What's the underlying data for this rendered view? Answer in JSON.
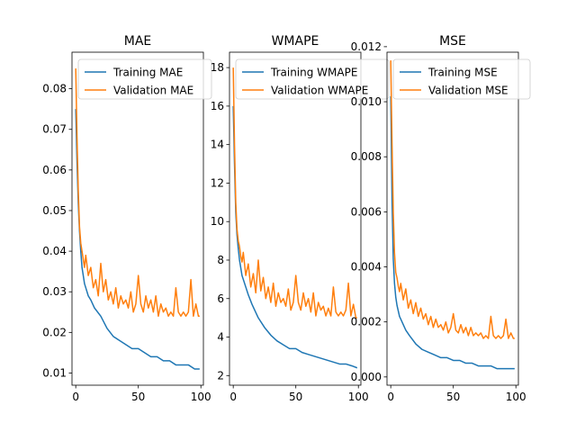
{
  "colors": {
    "training": "#1f77b4",
    "validation": "#ff7f0e"
  },
  "chart_data": [
    {
      "type": "line",
      "title": "MAE",
      "xlabel": "",
      "ylabel": "",
      "xlim": [
        -3,
        102
      ],
      "ylim": [
        0.007,
        0.089
      ],
      "xticks": [
        0,
        50,
        100
      ],
      "yticks": [
        0.01,
        0.02,
        0.03,
        0.04,
        0.05,
        0.06,
        0.07,
        0.08
      ],
      "ytick_labels": [
        "0.01",
        "0.02",
        "0.03",
        "0.04",
        "0.05",
        "0.06",
        "0.07",
        "0.08"
      ],
      "legend": "top-right",
      "grid": false,
      "series": [
        {
          "name": "Training MAE",
          "color": "#1f77b4",
          "x": [
            0,
            1,
            2,
            3,
            4,
            5,
            6,
            7,
            8,
            10,
            12,
            15,
            20,
            25,
            30,
            35,
            40,
            45,
            50,
            55,
            60,
            65,
            70,
            75,
            80,
            85,
            90,
            95,
            99
          ],
          "y": [
            0.075,
            0.062,
            0.052,
            0.045,
            0.04,
            0.036,
            0.034,
            0.032,
            0.031,
            0.029,
            0.028,
            0.026,
            0.024,
            0.021,
            0.019,
            0.018,
            0.017,
            0.016,
            0.016,
            0.015,
            0.014,
            0.014,
            0.013,
            0.013,
            0.012,
            0.012,
            0.012,
            0.011,
            0.011
          ]
        },
        {
          "name": "Validation MAE",
          "color": "#ff7f0e",
          "x": [
            0,
            1,
            2,
            3,
            4,
            5,
            6,
            7,
            8,
            10,
            12,
            14,
            16,
            18,
            20,
            22,
            24,
            26,
            28,
            30,
            32,
            34,
            36,
            38,
            40,
            42,
            44,
            46,
            48,
            50,
            52,
            54,
            56,
            58,
            60,
            62,
            64,
            66,
            68,
            70,
            72,
            74,
            76,
            78,
            80,
            82,
            84,
            86,
            88,
            90,
            92,
            94,
            96,
            98,
            99
          ],
          "y": [
            0.085,
            0.068,
            0.055,
            0.046,
            0.042,
            0.04,
            0.038,
            0.036,
            0.039,
            0.034,
            0.036,
            0.031,
            0.033,
            0.029,
            0.037,
            0.03,
            0.033,
            0.028,
            0.03,
            0.027,
            0.031,
            0.026,
            0.029,
            0.027,
            0.028,
            0.026,
            0.03,
            0.025,
            0.027,
            0.034,
            0.027,
            0.025,
            0.029,
            0.026,
            0.028,
            0.025,
            0.029,
            0.024,
            0.027,
            0.025,
            0.026,
            0.024,
            0.025,
            0.024,
            0.031,
            0.025,
            0.024,
            0.025,
            0.024,
            0.025,
            0.033,
            0.024,
            0.027,
            0.024,
            0.024
          ]
        }
      ]
    },
    {
      "type": "line",
      "title": "WMAPE",
      "xlabel": "",
      "ylabel": "",
      "xlim": [
        -3,
        102
      ],
      "ylim": [
        1.5,
        18.8
      ],
      "xticks": [
        0,
        50,
        100
      ],
      "yticks": [
        2,
        4,
        6,
        8,
        10,
        12,
        14,
        16,
        18
      ],
      "ytick_labels": [
        "2",
        "4",
        "6",
        "8",
        "10",
        "12",
        "14",
        "16",
        "18"
      ],
      "legend": "top-right",
      "grid": false,
      "series": [
        {
          "name": "Training WMAPE",
          "color": "#1f77b4",
          "x": [
            0,
            1,
            2,
            3,
            4,
            5,
            6,
            7,
            8,
            10,
            12,
            15,
            20,
            25,
            30,
            35,
            40,
            45,
            50,
            55,
            60,
            65,
            70,
            75,
            80,
            85,
            90,
            95,
            99
          ],
          "y": [
            16.0,
            13.0,
            10.5,
            9.3,
            8.6,
            8.0,
            7.6,
            7.2,
            7.0,
            6.6,
            6.2,
            5.7,
            5.0,
            4.5,
            4.1,
            3.8,
            3.6,
            3.4,
            3.4,
            3.2,
            3.1,
            3.0,
            2.9,
            2.8,
            2.7,
            2.6,
            2.6,
            2.5,
            2.4
          ]
        },
        {
          "name": "Validation WMAPE",
          "color": "#ff7f0e",
          "x": [
            0,
            1,
            2,
            3,
            4,
            5,
            6,
            7,
            8,
            10,
            12,
            14,
            16,
            18,
            20,
            22,
            24,
            26,
            28,
            30,
            32,
            34,
            36,
            38,
            40,
            42,
            44,
            46,
            48,
            50,
            52,
            54,
            56,
            58,
            60,
            62,
            64,
            66,
            68,
            70,
            72,
            74,
            76,
            78,
            80,
            82,
            84,
            86,
            88,
            90,
            92,
            94,
            96,
            98,
            99
          ],
          "y": [
            18.0,
            14.0,
            11.0,
            9.6,
            9.0,
            8.7,
            8.2,
            7.9,
            8.4,
            7.2,
            7.8,
            6.6,
            7.3,
            6.3,
            8.0,
            6.4,
            7.1,
            6.0,
            6.6,
            5.8,
            6.8,
            5.6,
            6.3,
            5.8,
            6.0,
            5.6,
            6.5,
            5.4,
            5.8,
            7.2,
            5.8,
            5.4,
            6.3,
            5.6,
            6.0,
            5.3,
            6.3,
            5.1,
            5.8,
            5.4,
            5.6,
            5.1,
            5.5,
            5.1,
            6.6,
            5.3,
            5.1,
            5.3,
            5.1,
            5.4,
            6.8,
            5.1,
            5.7,
            5.0,
            5.0
          ]
        }
      ]
    },
    {
      "type": "line",
      "title": "MSE",
      "xlabel": "",
      "ylabel": "",
      "xlim": [
        -3,
        102
      ],
      "ylim": [
        -0.0003,
        0.0118
      ],
      "xticks": [
        0,
        50,
        100
      ],
      "yticks": [
        0.0,
        0.002,
        0.004,
        0.006,
        0.008,
        0.01,
        0.012
      ],
      "ytick_labels": [
        "0.000",
        "0.002",
        "0.004",
        "0.006",
        "0.008",
        "0.010",
        "0.012"
      ],
      "legend": "top-right",
      "grid": false,
      "series": [
        {
          "name": "Training MSE",
          "color": "#1f77b4",
          "x": [
            0,
            1,
            2,
            3,
            4,
            5,
            6,
            7,
            8,
            10,
            12,
            15,
            20,
            25,
            30,
            35,
            40,
            45,
            50,
            55,
            60,
            65,
            70,
            75,
            80,
            85,
            90,
            95,
            99
          ],
          "y": [
            0.0102,
            0.0065,
            0.0043,
            0.0034,
            0.0029,
            0.0026,
            0.0024,
            0.0022,
            0.0021,
            0.0019,
            0.0017,
            0.0015,
            0.0012,
            0.001,
            0.0009,
            0.0008,
            0.0007,
            0.0007,
            0.0006,
            0.0006,
            0.0005,
            0.0005,
            0.0004,
            0.0004,
            0.0004,
            0.0003,
            0.0003,
            0.0003,
            0.0003
          ]
        },
        {
          "name": "Validation MSE",
          "color": "#ff7f0e",
          "x": [
            0,
            1,
            2,
            3,
            4,
            5,
            6,
            7,
            8,
            10,
            12,
            14,
            16,
            18,
            20,
            22,
            24,
            26,
            28,
            30,
            32,
            34,
            36,
            38,
            40,
            42,
            44,
            46,
            48,
            50,
            52,
            54,
            56,
            58,
            60,
            62,
            64,
            66,
            68,
            70,
            72,
            74,
            76,
            78,
            80,
            82,
            84,
            86,
            88,
            90,
            92,
            94,
            96,
            98,
            99
          ],
          "y": [
            0.0115,
            0.0085,
            0.006,
            0.0045,
            0.0038,
            0.0036,
            0.0033,
            0.0031,
            0.0034,
            0.0028,
            0.0032,
            0.0025,
            0.0028,
            0.0023,
            0.0027,
            0.0022,
            0.0025,
            0.0021,
            0.0023,
            0.0019,
            0.0022,
            0.0018,
            0.0021,
            0.0018,
            0.0019,
            0.0017,
            0.002,
            0.0016,
            0.0018,
            0.0023,
            0.0017,
            0.0016,
            0.0019,
            0.0016,
            0.0018,
            0.0015,
            0.0018,
            0.0015,
            0.0016,
            0.0015,
            0.0016,
            0.0014,
            0.0015,
            0.0014,
            0.0022,
            0.0015,
            0.0014,
            0.0015,
            0.0014,
            0.0015,
            0.0021,
            0.0014,
            0.0016,
            0.0014,
            0.0014
          ]
        }
      ]
    }
  ]
}
